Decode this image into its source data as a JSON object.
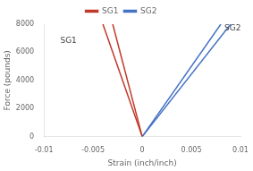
{
  "chart_data": {
    "type": "line",
    "xlabel": "Strain (inch/inch)",
    "ylabel": "Force (pounds)",
    "xlim": [
      -0.01,
      0.01
    ],
    "ylim": [
      0,
      8000
    ],
    "xticks": [
      -0.01,
      -0.005,
      0,
      0.005,
      0.01
    ],
    "yticks": [
      0,
      2000,
      4000,
      6000,
      8000
    ],
    "series": [
      {
        "name": "SG1",
        "color": "#c0392b",
        "x": [
          -0.004,
          0.0
        ],
        "values": [
          8000,
          0
        ]
      },
      {
        "color": "#c0392b",
        "x": [
          -0.003,
          0.0
        ],
        "values": [
          8000,
          0
        ]
      },
      {
        "name": "SG2",
        "color": "#4472c4",
        "x": [
          0.0,
          0.008
        ],
        "values": [
          0,
          8000
        ]
      },
      {
        "color": "#4472c4",
        "x": [
          0.0,
          0.009
        ],
        "values": [
          0,
          8000
        ]
      }
    ],
    "annotations": [
      {
        "text": "SG1",
        "x": -0.0075,
        "y": 6800
      },
      {
        "text": "SG2",
        "x": 0.0092,
        "y": 7700
      }
    ],
    "legend": "top",
    "grid": false
  }
}
